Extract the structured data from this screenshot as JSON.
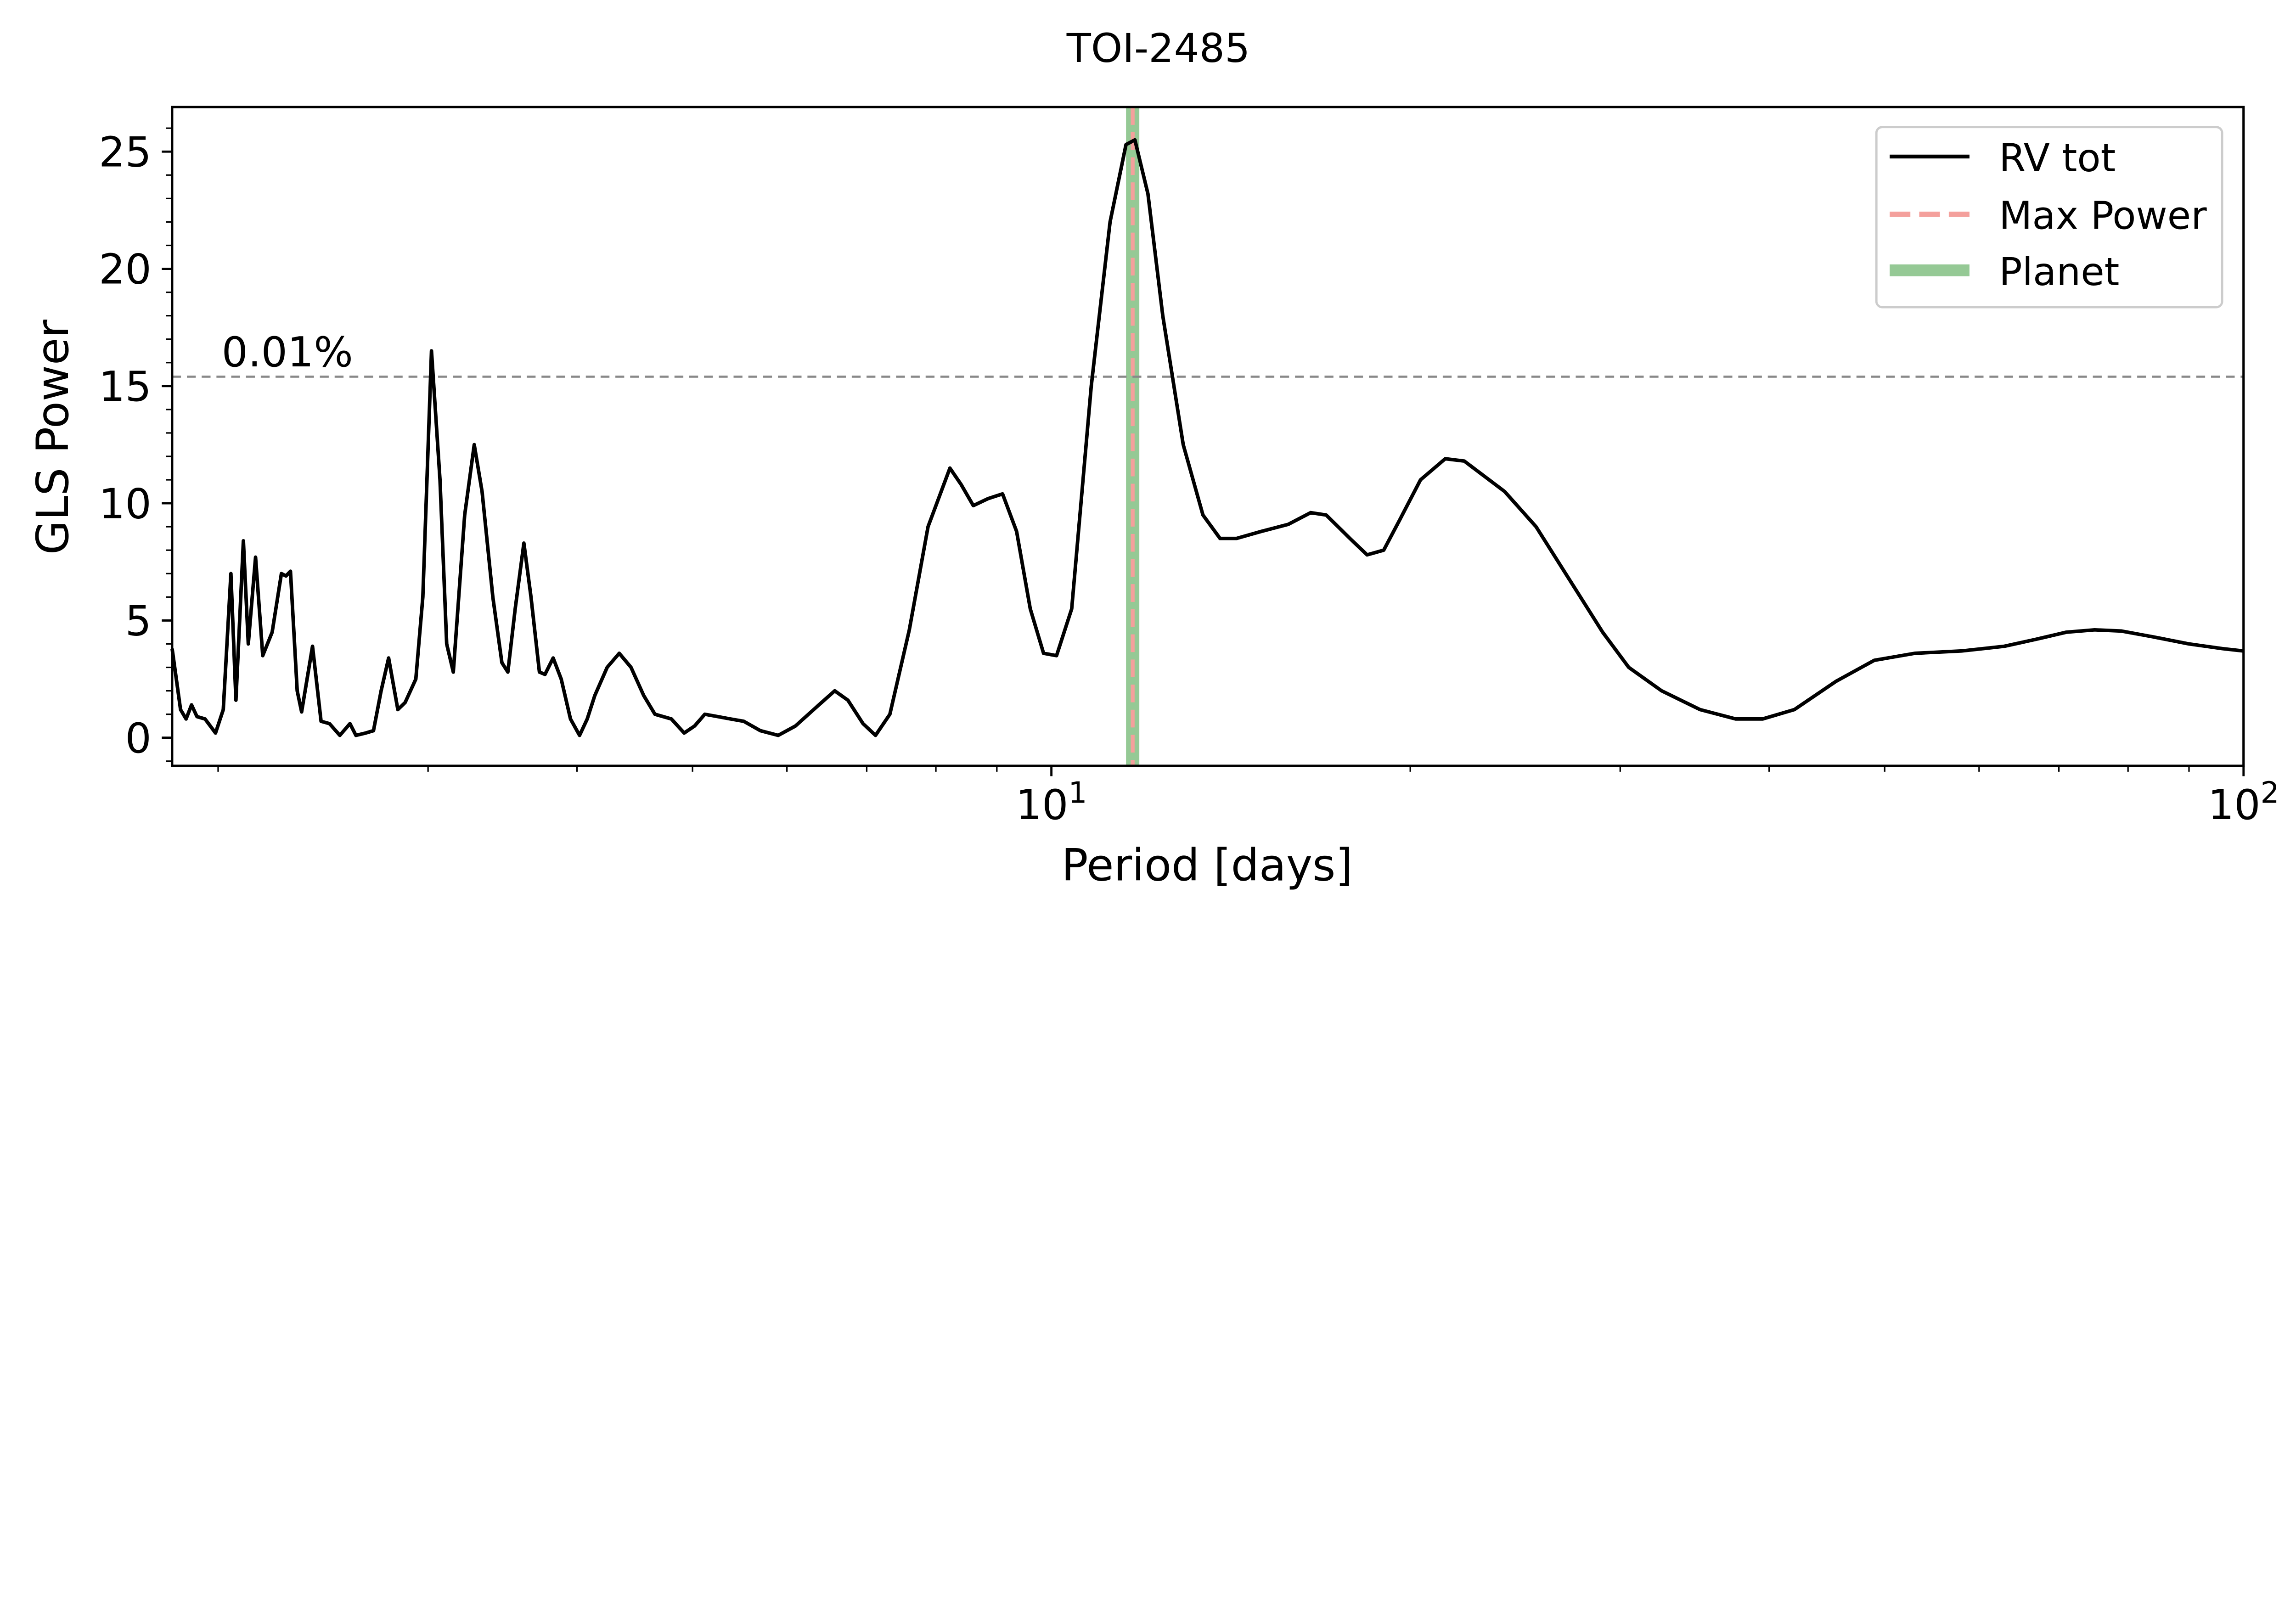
{
  "chart_data": {
    "type": "line",
    "title": "TOI-2485",
    "xlabel": "Period [days]",
    "ylabel": "GLS Power",
    "xscale": "log",
    "xlim": [
      1.83,
      100
    ],
    "ylim": [
      -1.2,
      26.9
    ],
    "grid": false,
    "legend_position": "top-right",
    "x_major_ticks": [
      10,
      100
    ],
    "x_major_tick_labels": [
      {
        "base": "10",
        "exp": "1"
      },
      {
        "base": "10",
        "exp": "2"
      }
    ],
    "y_ticks": [
      0,
      5,
      10,
      15,
      20,
      25
    ],
    "y_tick_labels": [
      "0",
      "5",
      "10",
      "15",
      "20",
      "25"
    ],
    "threshold": {
      "value": 15.4,
      "label": "0.01%",
      "color": "#888888"
    },
    "max_power_period": 11.7,
    "planet_period": 11.7,
    "legend": [
      {
        "label": "RV tot",
        "color": "#000000",
        "style": "solid"
      },
      {
        "label": "Max Power",
        "color": "#f4a09c",
        "style": "dashed"
      },
      {
        "label": "Planet",
        "color": "#95c995",
        "style": "thick"
      }
    ],
    "series": [
      {
        "name": "RV tot",
        "color": "#000000",
        "points": [
          [
            1.83,
            3.8
          ],
          [
            1.86,
            1.2
          ],
          [
            1.88,
            0.8
          ],
          [
            1.9,
            1.4
          ],
          [
            1.92,
            0.9
          ],
          [
            1.95,
            0.8
          ],
          [
            1.99,
            0.2
          ],
          [
            2.02,
            1.2
          ],
          [
            2.05,
            7.0
          ],
          [
            2.07,
            1.6
          ],
          [
            2.1,
            8.4
          ],
          [
            2.12,
            4.0
          ],
          [
            2.15,
            7.7
          ],
          [
            2.18,
            3.5
          ],
          [
            2.22,
            4.5
          ],
          [
            2.26,
            7.0
          ],
          [
            2.28,
            6.9
          ],
          [
            2.3,
            7.1
          ],
          [
            2.33,
            2.0
          ],
          [
            2.35,
            1.1
          ],
          [
            2.4,
            3.9
          ],
          [
            2.44,
            0.7
          ],
          [
            2.48,
            0.6
          ],
          [
            2.53,
            0.1
          ],
          [
            2.58,
            0.6
          ],
          [
            2.61,
            0.1
          ],
          [
            2.66,
            0.2
          ],
          [
            2.7,
            0.3
          ],
          [
            2.74,
            2.0
          ],
          [
            2.78,
            3.4
          ],
          [
            2.83,
            1.2
          ],
          [
            2.87,
            1.5
          ],
          [
            2.93,
            2.5
          ],
          [
            2.97,
            6.0
          ],
          [
            3.02,
            16.5
          ],
          [
            3.07,
            11.0
          ],
          [
            3.11,
            4.0
          ],
          [
            3.15,
            2.8
          ],
          [
            3.22,
            9.5
          ],
          [
            3.28,
            12.5
          ],
          [
            3.33,
            10.5
          ],
          [
            3.4,
            6.0
          ],
          [
            3.46,
            3.2
          ],
          [
            3.5,
            2.8
          ],
          [
            3.55,
            5.5
          ],
          [
            3.61,
            8.3
          ],
          [
            3.66,
            6.0
          ],
          [
            3.72,
            2.8
          ],
          [
            3.76,
            2.7
          ],
          [
            3.82,
            3.4
          ],
          [
            3.88,
            2.5
          ],
          [
            3.95,
            0.8
          ],
          [
            4.02,
            0.1
          ],
          [
            4.08,
            0.8
          ],
          [
            4.14,
            1.8
          ],
          [
            4.24,
            3.0
          ],
          [
            4.34,
            3.6
          ],
          [
            4.44,
            3.0
          ],
          [
            4.55,
            1.8
          ],
          [
            4.65,
            1.0
          ],
          [
            4.8,
            0.8
          ],
          [
            4.92,
            0.2
          ],
          [
            5.02,
            0.5
          ],
          [
            5.12,
            1.0
          ],
          [
            5.25,
            0.9
          ],
          [
            5.38,
            0.8
          ],
          [
            5.52,
            0.7
          ],
          [
            5.7,
            0.3
          ],
          [
            5.9,
            0.1
          ],
          [
            6.1,
            0.5
          ],
          [
            6.35,
            1.3
          ],
          [
            6.58,
            2.0
          ],
          [
            6.75,
            1.6
          ],
          [
            6.95,
            0.6
          ],
          [
            7.12,
            0.1
          ],
          [
            7.32,
            1.0
          ],
          [
            7.6,
            4.6
          ],
          [
            7.88,
            9.0
          ],
          [
            8.22,
            11.5
          ],
          [
            8.4,
            10.8
          ],
          [
            8.6,
            9.9
          ],
          [
            8.85,
            10.2
          ],
          [
            9.1,
            10.4
          ],
          [
            9.35,
            8.8
          ],
          [
            9.6,
            5.5
          ],
          [
            9.85,
            3.6
          ],
          [
            10.1,
            3.5
          ],
          [
            10.4,
            5.5
          ],
          [
            10.8,
            15.0
          ],
          [
            11.2,
            22.0
          ],
          [
            11.55,
            25.3
          ],
          [
            11.75,
            25.5
          ],
          [
            12.05,
            23.2
          ],
          [
            12.4,
            18.0
          ],
          [
            12.9,
            12.5
          ],
          [
            13.4,
            9.5
          ],
          [
            13.85,
            8.5
          ],
          [
            14.3,
            8.5
          ],
          [
            15.0,
            8.8
          ],
          [
            15.8,
            9.1
          ],
          [
            16.5,
            9.6
          ],
          [
            17.0,
            9.5
          ],
          [
            17.8,
            8.5
          ],
          [
            18.4,
            7.8
          ],
          [
            19.0,
            8.0
          ],
          [
            19.6,
            9.3
          ],
          [
            20.4,
            11.0
          ],
          [
            21.4,
            11.9
          ],
          [
            22.2,
            11.8
          ],
          [
            24.0,
            10.5
          ],
          [
            25.5,
            9.0
          ],
          [
            27.0,
            7.0
          ],
          [
            29.0,
            4.5
          ],
          [
            30.5,
            3.0
          ],
          [
            32.5,
            2.0
          ],
          [
            35.0,
            1.2
          ],
          [
            37.5,
            0.8
          ],
          [
            39.5,
            0.8
          ],
          [
            42.0,
            1.2
          ],
          [
            45.5,
            2.4
          ],
          [
            49.0,
            3.3
          ],
          [
            53.0,
            3.6
          ],
          [
            58.0,
            3.7
          ],
          [
            63.0,
            3.9
          ],
          [
            67.0,
            4.2
          ],
          [
            71.0,
            4.5
          ],
          [
            75.0,
            4.6
          ],
          [
            79.0,
            4.55
          ],
          [
            84.0,
            4.3
          ],
          [
            90.0,
            4.0
          ],
          [
            96.0,
            3.8
          ],
          [
            100.0,
            3.7
          ]
        ]
      }
    ]
  }
}
